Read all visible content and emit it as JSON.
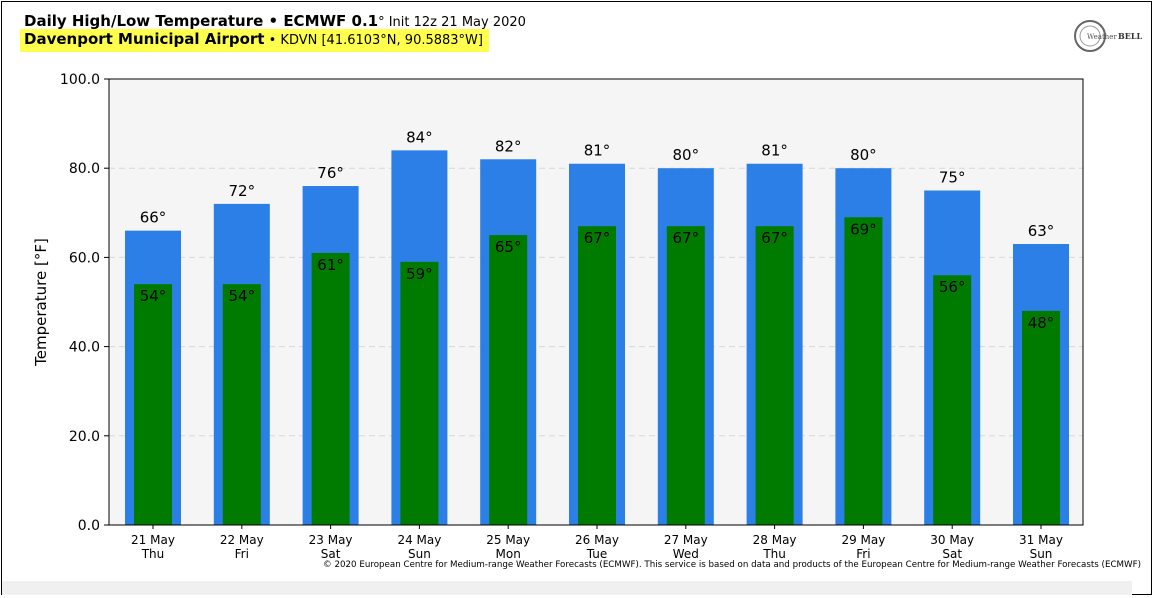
{
  "header": {
    "title_bold": "Daily High/Low Temperature • ECMWF 0.1",
    "title_deg": "°",
    "title_init": " Init 12z 21 May 2020",
    "location_bold": "Davenport Municipal Airport",
    "location_rest": " • KDVN [41.6103°N, 90.5883°W]"
  },
  "logo": {
    "text_left": "Weather",
    "text_right": "BELL",
    "color": "#555555"
  },
  "footer": {
    "copyright": "© 2020 European Centre for Medium-range Weather Forecasts (ECMWF). This service is based on data and products of the European Centre for Medium-range Weather Forecasts (ECMWF)"
  },
  "colors": {
    "high_bar": "#2b7fe6",
    "low_bar": "#007b00",
    "plot_bg": "#f5f5f5"
  },
  "chart_data": {
    "type": "bar",
    "ylabel": "Temperature [°F]",
    "ylim": [
      0,
      100
    ],
    "yticks": [
      "0.0",
      "20.0",
      "40.0",
      "60.0",
      "80.0",
      "100.0"
    ],
    "ytick_values": [
      0,
      20,
      40,
      60,
      80,
      100
    ],
    "grid": true,
    "categories": [
      [
        "21 May",
        "Thu"
      ],
      [
        "22 May",
        "Fri"
      ],
      [
        "23 May",
        "Sat"
      ],
      [
        "24 May",
        "Sun"
      ],
      [
        "25 May",
        "Mon"
      ],
      [
        "26 May",
        "Tue"
      ],
      [
        "27 May",
        "Wed"
      ],
      [
        "28 May",
        "Thu"
      ],
      [
        "29 May",
        "Fri"
      ],
      [
        "30 May",
        "Sat"
      ],
      [
        "31 May",
        "Sun"
      ]
    ],
    "series": [
      {
        "key": "high",
        "values": [
          66,
          72,
          76,
          84,
          82,
          81,
          80,
          81,
          80,
          75,
          63
        ],
        "labels": [
          "66°",
          "72°",
          "76°",
          "84°",
          "82°",
          "81°",
          "80°",
          "81°",
          "80°",
          "75°",
          "63°"
        ]
      },
      {
        "key": "low",
        "values": [
          54,
          54,
          61,
          59,
          65,
          67,
          67,
          67,
          69,
          56,
          48
        ],
        "labels": [
          "54°",
          "54°",
          "61°",
          "59°",
          "65°",
          "67°",
          "67°",
          "67°",
          "69°",
          "56°",
          "48°"
        ]
      }
    ]
  }
}
